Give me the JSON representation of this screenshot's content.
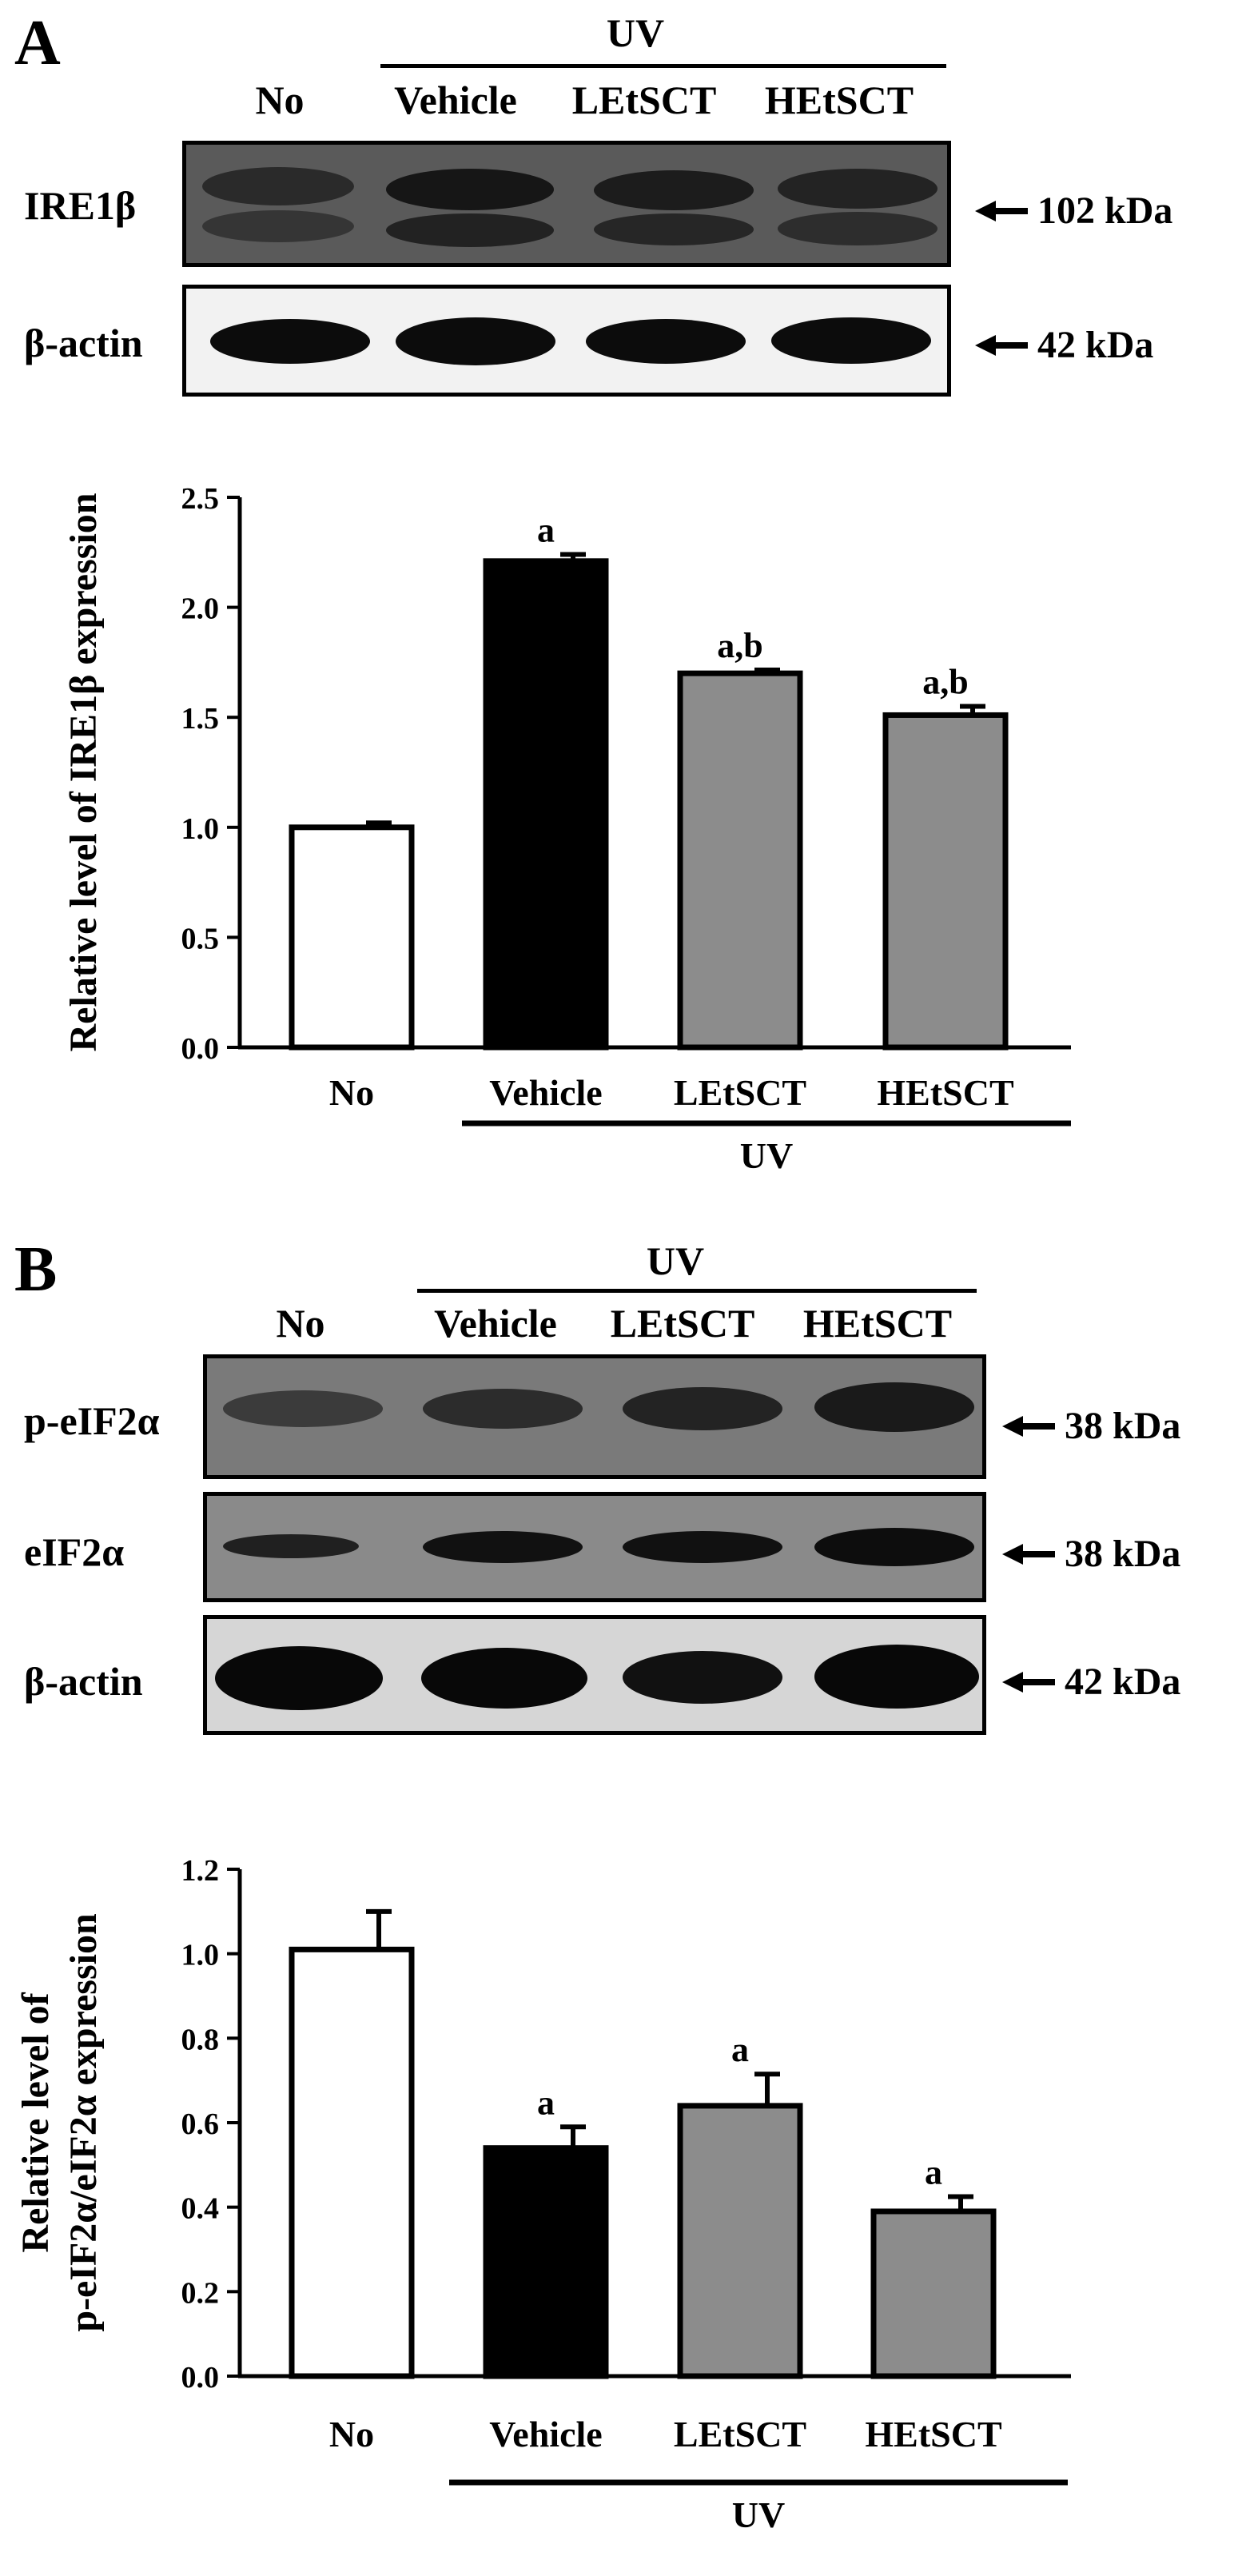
{
  "panels": [
    {
      "letter": "A",
      "treatment_label": "UV",
      "lanes": [
        "No",
        "Vehicle",
        "LEtSCT",
        "HEtSCT"
      ],
      "blots": [
        {
          "label": "IRE1β",
          "size": "102 kDa"
        },
        {
          "label": "β-actin",
          "size": "42 kDa"
        }
      ]
    },
    {
      "letter": "B",
      "treatment_label": "UV",
      "lanes": [
        "No",
        "Vehicle",
        "LEtSCT",
        "HEtSCT"
      ],
      "blots": [
        {
          "label": "p-eIF2α",
          "size": "38 kDa"
        },
        {
          "label": "eIF2α",
          "size": "38 kDa"
        },
        {
          "label": "β-actin",
          "size": "42 kDa"
        }
      ]
    }
  ],
  "chart_data": [
    {
      "type": "bar",
      "categories": [
        "No",
        "Vehicle",
        "LEtSCT",
        "HEtSCT"
      ],
      "values": [
        1.0,
        2.21,
        1.7,
        1.51
      ],
      "errors": [
        0.02,
        0.03,
        0.015,
        0.04
      ],
      "annotations": [
        "",
        "a",
        "a,b",
        "a,b"
      ],
      "bar_colors": [
        "#ffffff",
        "#000000",
        "#8c8c8c",
        "#8c8c8c"
      ],
      "ylabel": [
        "Relative level of IRE1β expression"
      ],
      "ylim": [
        0,
        2.5
      ],
      "yticks": [
        "0.0",
        "0.5",
        "1.0",
        "1.5",
        "2.0",
        "2.5"
      ],
      "group_label": "UV",
      "grid": false
    },
    {
      "type": "bar",
      "categories": [
        "No",
        "Vehicle",
        "LEtSCT",
        "HEtSCT"
      ],
      "values": [
        1.01,
        0.54,
        0.64,
        0.39
      ],
      "errors": [
        0.09,
        0.05,
        0.075,
        0.035
      ],
      "annotations": [
        "",
        "a",
        "a",
        "a"
      ],
      "bar_colors": [
        "#ffffff",
        "#000000",
        "#8c8c8c",
        "#8c8c8c"
      ],
      "ylabel": [
        "Relative level of",
        "p-eIF2α/eIF2α expression"
      ],
      "ylim": [
        0,
        1.2
      ],
      "yticks": [
        "0.0",
        "0.2",
        "0.4",
        "0.6",
        "0.8",
        "1.0",
        "1.2"
      ],
      "group_label": "UV",
      "grid": false
    }
  ]
}
